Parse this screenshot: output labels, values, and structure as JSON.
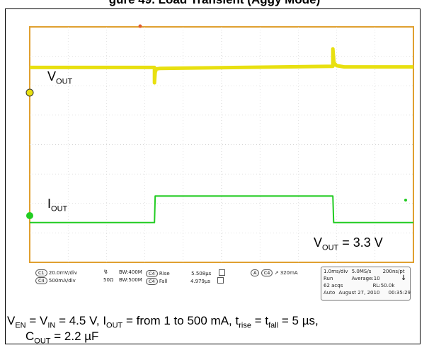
{
  "figure_title": "gure 49. Load Transient (Aggy Mode)",
  "scope": {
    "grid_divisions": {
      "x": 10,
      "y": 8
    },
    "labels": {
      "vout_base": "V",
      "vout_sub": "OUT",
      "iout_base": "I",
      "iout_sub": "OUT",
      "vout_value_base": "V",
      "vout_value_sub": "OUT",
      "vout_value_rest": " = 3.3 V"
    },
    "colors": {
      "frame": "#e0a030",
      "vout_trace": "#e8e010",
      "iout_trace": "#22cc22",
      "grid": "#c8c8c8"
    }
  },
  "chart_data": {
    "type": "line",
    "title": "",
    "xlabel": "",
    "ylabel": "",
    "x_unit": "div",
    "xlim": [
      0,
      10
    ],
    "ylim": [
      -4,
      4
    ],
    "series": [
      {
        "name": "VOUT",
        "x": [
          0,
          3.25,
          3.25,
          3.27,
          3.3,
          3.4,
          5.5,
          7.9,
          7.9,
          7.93,
          8.0,
          8.2,
          10
        ],
        "y": [
          2.62,
          2.62,
          2.1,
          2.45,
          2.57,
          2.59,
          2.62,
          2.66,
          3.25,
          2.78,
          2.68,
          2.64,
          2.64
        ]
      },
      {
        "name": "IOUT",
        "x": [
          0,
          3.25,
          3.27,
          7.9,
          7.92,
          10
        ],
        "y": [
          -2.65,
          -2.65,
          -1.75,
          -1.75,
          -2.65,
          -2.65
        ]
      }
    ]
  },
  "status_bar": {
    "ch1_badge": "C1",
    "ch1_scale": "20.0mV/div",
    "ch4_badge": "C4",
    "ch4_scale": "500mA/div",
    "bw1_label": "BW:400M",
    "ohm_label": "50Ω",
    "bw2_label": "BW:500M",
    "rise_badge": "C4",
    "rise_label": "Rise",
    "rise_value": "5.508µs",
    "fall_badge": "C4",
    "fall_label": "Fall",
    "fall_value": "4.979µs",
    "trig_a": "A",
    "trig_badge": "C4",
    "trig_level": "320mA",
    "timebase": "1.0ms/div",
    "samplerate": "5.0MS/s",
    "ptrate": "200ns/pt",
    "run": "Run",
    "average": "Average:10",
    "acqs": "62 acqs",
    "rl": "RL:50.0k",
    "mode": "Auto",
    "date": "August 27, 2010",
    "time": "00:35:29"
  },
  "caption": {
    "line1": {
      "ven": "V",
      "ven_sub": "EN",
      "eq1": " = ",
      "vin": "V",
      "vin_sub": "IN",
      "eq2": " = 4.5 V, ",
      "iout": "I",
      "iout_sub": "OUT",
      "eq3": " = from 1 to 500 mA, ",
      "t": "t",
      "trise_sub": "rise",
      "eq4": " = t",
      "tfall_sub": "fall",
      "eq5": " = 5 µs,"
    },
    "line2": {
      "cout": "C",
      "cout_sub": "OUT",
      "eq": " = 2.2 µF"
    }
  }
}
